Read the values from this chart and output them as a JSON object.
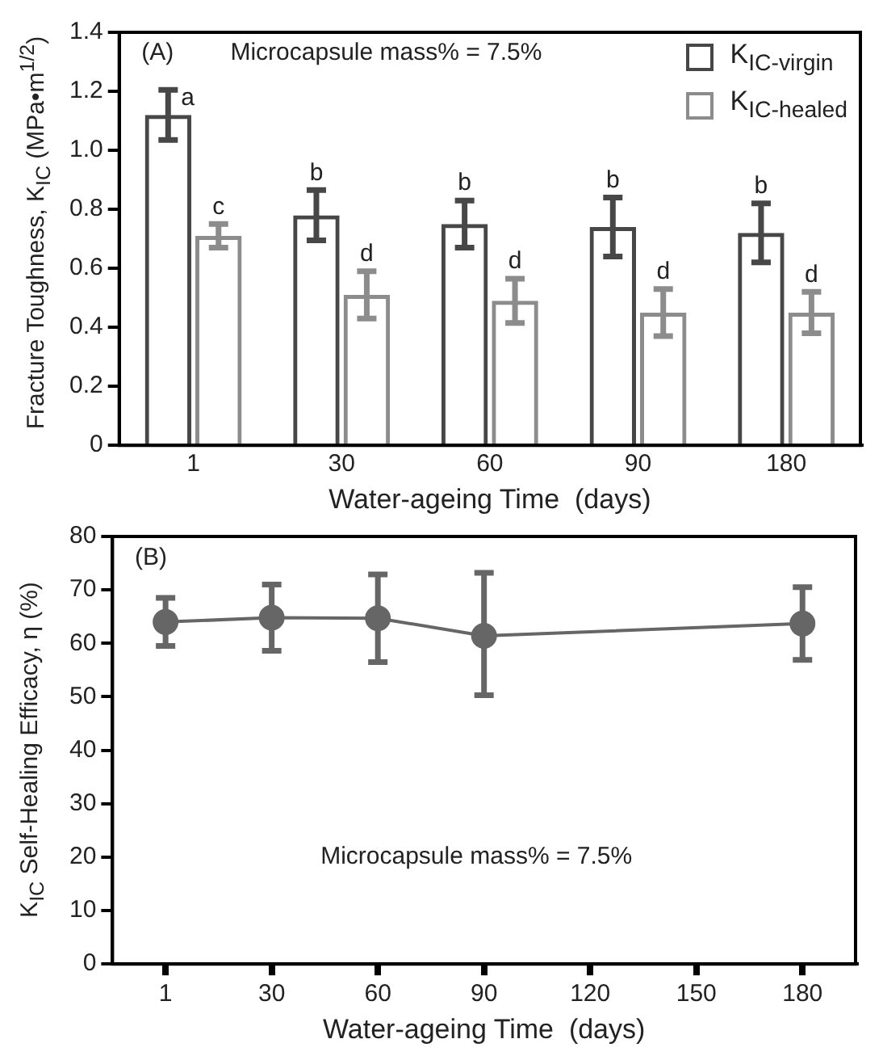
{
  "chart_data": [
    {
      "type": "bar",
      "xlabel": "Water-ageing Time  (days)",
      "ylabel": "Fracture Toughness, K$_{IC}$ (MPa•m$^{1/2}$)",
      "categories": [
        "1",
        "30",
        "60",
        "90",
        "180"
      ],
      "series": [
        {
          "name": "K$_{IC-virgin}$",
          "color": "#474747",
          "values": [
            1.12,
            0.78,
            0.75,
            0.74,
            0.72
          ],
          "errors": [
            0.085,
            0.085,
            0.08,
            0.1,
            0.1
          ],
          "value_labels": [
            "a",
            "b",
            "b",
            "b",
            "b"
          ]
        },
        {
          "name": "K$_{IC-healed}$",
          "color": "#8c8c8c",
          "values": [
            0.71,
            0.51,
            0.49,
            0.45,
            0.45
          ],
          "errors": [
            0.04,
            0.08,
            0.075,
            0.08,
            0.07
          ],
          "value_labels": [
            "c",
            "d",
            "d",
            "d",
            "d"
          ]
        }
      ],
      "ylim": [
        0,
        1.4
      ],
      "yticks": [
        0,
        0.2,
        0.4,
        0.6,
        0.8,
        {
          "value": 1,
          "label": "1.0"
        },
        1.2,
        1.4
      ],
      "legend": "top right",
      "annotations": [
        "(A)",
        "Microcapsule mass% = 7.5%"
      ]
    },
    {
      "type": "line",
      "xlabel": "Water-ageing Time  (days)",
      "ylabel": "K$_{IC}$ Self-Healing Efficacy, η  (%)",
      "categories": [
        "1",
        "30",
        "60",
        "90",
        "120",
        "150",
        "180"
      ],
      "series": [
        {
          "color": "#666666",
          "values": [
            64,
            64.8,
            64.7,
            61.4,
            null,
            null,
            63.7
          ],
          "errors": [
            4.5,
            6.2,
            8.2,
            [
              50.3,
              73.2
            ],
            null,
            null,
            6.8
          ]
        }
      ],
      "ylim": [
        0,
        80
      ],
      "yticks": [
        0,
        10,
        20,
        30,
        40,
        50,
        60,
        70,
        80
      ],
      "marker": "circle",
      "line_style": "solid",
      "legend": false,
      "annotations": [
        "(B)",
        "Microcapsule mass% = 7.5%"
      ]
    }
  ]
}
